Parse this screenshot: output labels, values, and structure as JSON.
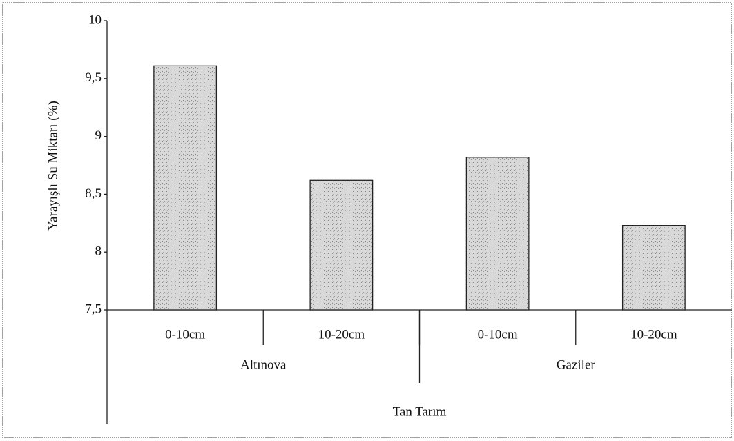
{
  "chart_data": {
    "type": "bar",
    "y_label": "Yarayışlı Su Miktarı (%)",
    "x_label": "Tan Tarım",
    "categories": [
      "0-10cm",
      "10-20cm",
      "0-10cm",
      "10-20cm"
    ],
    "groups": [
      "Altınova",
      "Gaziler"
    ],
    "values": [
      9.61,
      8.62,
      8.82,
      8.23
    ],
    "color": "#d4d4d4",
    "ylim": [
      7.5,
      10
    ],
    "yticks": [
      {
        "value": 7.5,
        "label": "7,5"
      },
      8,
      {
        "value": 8.5,
        "label": "8,5"
      },
      9,
      {
        "value": 9.5,
        "label": "9,5"
      },
      10
    ],
    "grid": false
  }
}
